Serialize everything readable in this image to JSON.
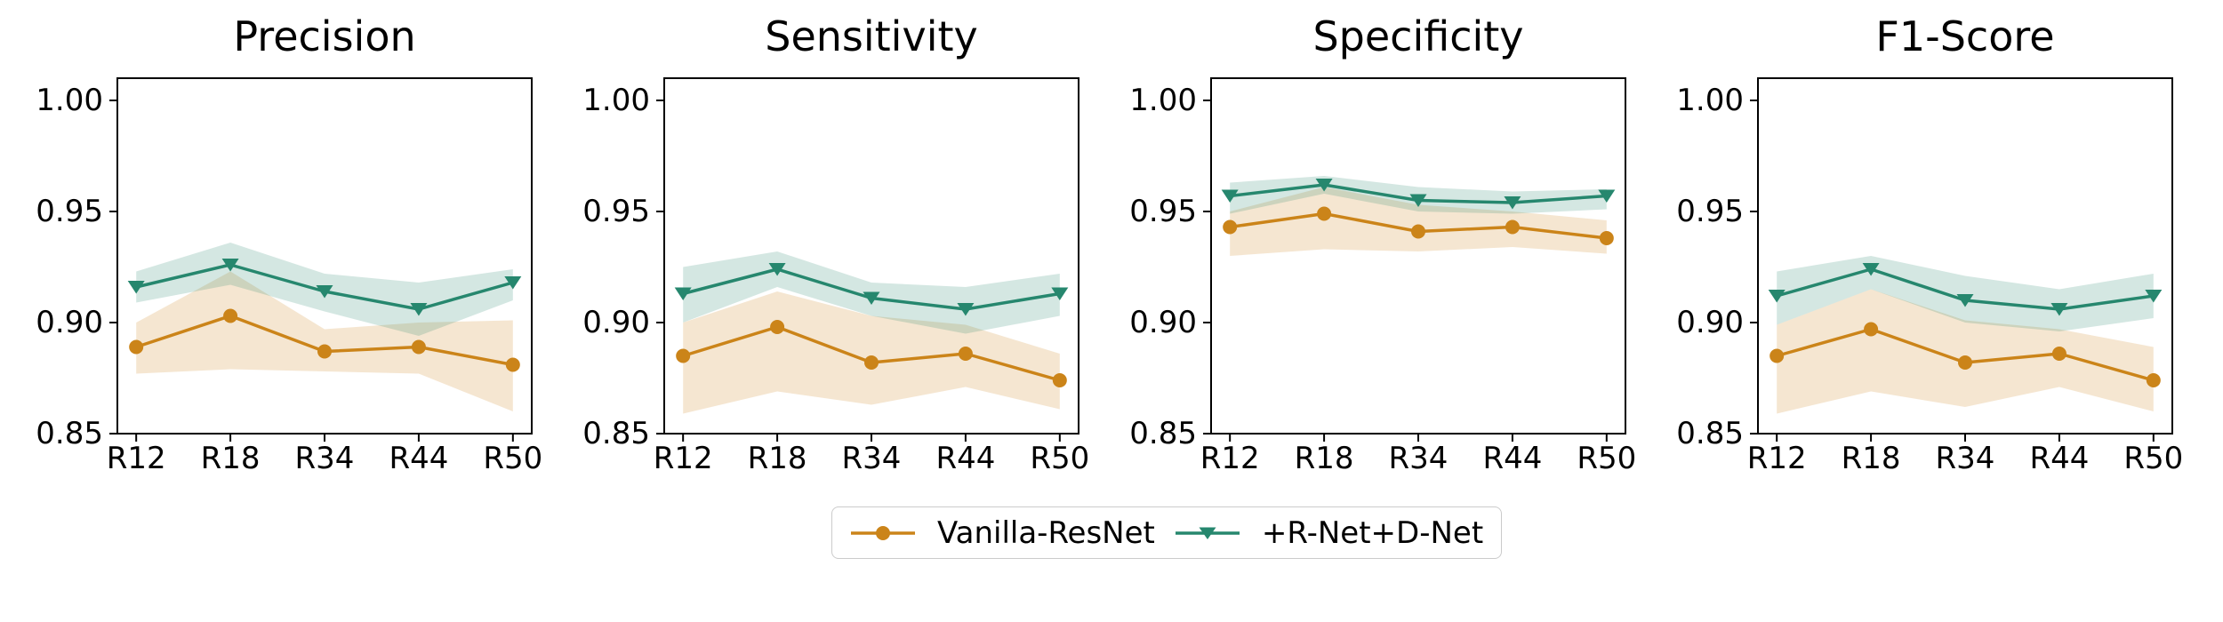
{
  "figure": {
    "background": "#ffffff",
    "text_color": "#000000",
    "spine_color": "#000000"
  },
  "legend": {
    "items": [
      {
        "label": "Vanilla-ResNet",
        "marker": "circle-marker",
        "color": "#CB8419"
      },
      {
        "label": "+R-Net+D-Net",
        "marker": "triangle-down-marker",
        "color": "#26876E"
      }
    ]
  },
  "chart_data": [
    {
      "type": "line",
      "title": "Precision",
      "categories": [
        "R12",
        "R18",
        "R34",
        "R44",
        "R50"
      ],
      "ylim": [
        0.85,
        1.01
      ],
      "ytick_values": [
        1.0,
        0.95,
        0.9,
        0.85
      ],
      "ytick_labels": [
        "1.00",
        "0.95",
        "0.90",
        "0.85"
      ],
      "grid": false,
      "band_opacity": 0.2,
      "series": [
        {
          "name": "Vanilla-ResNet",
          "color": "#CB8419",
          "marker": "circle",
          "values": [
            0.889,
            0.903,
            0.887,
            0.889,
            0.881
          ],
          "band_upper": [
            0.9,
            0.923,
            0.897,
            0.9,
            0.901
          ],
          "band_lower": [
            0.877,
            0.879,
            0.878,
            0.877,
            0.86
          ]
        },
        {
          "name": "+R-Net+D-Net",
          "color": "#26876E",
          "marker": "triangle-down",
          "values": [
            0.916,
            0.926,
            0.914,
            0.906,
            0.918
          ],
          "band_upper": [
            0.923,
            0.936,
            0.922,
            0.918,
            0.924
          ],
          "band_lower": [
            0.909,
            0.917,
            0.905,
            0.894,
            0.91
          ]
        }
      ]
    },
    {
      "type": "line",
      "title": "Sensitivity",
      "categories": [
        "R12",
        "R18",
        "R34",
        "R44",
        "R50"
      ],
      "ylim": [
        0.85,
        1.01
      ],
      "ytick_values": [
        1.0,
        0.95,
        0.9,
        0.85
      ],
      "ytick_labels": [
        "1.00",
        "0.95",
        "0.90",
        "0.85"
      ],
      "grid": false,
      "band_opacity": 0.2,
      "series": [
        {
          "name": "Vanilla-ResNet",
          "color": "#CB8419",
          "marker": "circle",
          "values": [
            0.885,
            0.898,
            0.882,
            0.886,
            0.874
          ],
          "band_upper": [
            0.9,
            0.914,
            0.903,
            0.899,
            0.886
          ],
          "band_lower": [
            0.859,
            0.869,
            0.863,
            0.871,
            0.861
          ]
        },
        {
          "name": "+R-Net+D-Net",
          "color": "#26876E",
          "marker": "triangle-down",
          "values": [
            0.913,
            0.924,
            0.911,
            0.906,
            0.913
          ],
          "band_upper": [
            0.925,
            0.932,
            0.918,
            0.916,
            0.922
          ],
          "band_lower": [
            0.9,
            0.916,
            0.903,
            0.895,
            0.903
          ]
        }
      ]
    },
    {
      "type": "line",
      "title": "Specificity",
      "categories": [
        "R12",
        "R18",
        "R34",
        "R44",
        "R50"
      ],
      "ylim": [
        0.85,
        1.01
      ],
      "ytick_values": [
        1.0,
        0.95,
        0.9,
        0.85
      ],
      "ytick_labels": [
        "1.00",
        "0.95",
        "0.90",
        "0.85"
      ],
      "grid": false,
      "band_opacity": 0.2,
      "series": [
        {
          "name": "Vanilla-ResNet",
          "color": "#CB8419",
          "marker": "circle",
          "values": [
            0.943,
            0.949,
            0.941,
            0.943,
            0.938
          ],
          "band_upper": [
            0.95,
            0.961,
            0.953,
            0.95,
            0.946
          ],
          "band_lower": [
            0.93,
            0.933,
            0.932,
            0.934,
            0.931
          ]
        },
        {
          "name": "+R-Net+D-Net",
          "color": "#26876E",
          "marker": "triangle-down",
          "values": [
            0.957,
            0.962,
            0.955,
            0.954,
            0.957
          ],
          "band_upper": [
            0.963,
            0.966,
            0.961,
            0.959,
            0.96
          ],
          "band_lower": [
            0.949,
            0.958,
            0.95,
            0.949,
            0.951
          ]
        }
      ]
    },
    {
      "type": "line",
      "title": "F1-Score",
      "categories": [
        "R12",
        "R18",
        "R34",
        "R44",
        "R50"
      ],
      "ylim": [
        0.85,
        1.01
      ],
      "ytick_values": [
        1.0,
        0.95,
        0.9,
        0.85
      ],
      "ytick_labels": [
        "1.00",
        "0.95",
        "0.90",
        "0.85"
      ],
      "grid": false,
      "band_opacity": 0.2,
      "series": [
        {
          "name": "Vanilla-ResNet",
          "color": "#CB8419",
          "marker": "circle",
          "values": [
            0.885,
            0.897,
            0.882,
            0.886,
            0.874
          ],
          "band_upper": [
            0.899,
            0.915,
            0.901,
            0.897,
            0.889
          ],
          "band_lower": [
            0.859,
            0.869,
            0.862,
            0.871,
            0.86
          ]
        },
        {
          "name": "+R-Net+D-Net",
          "color": "#26876E",
          "marker": "triangle-down",
          "values": [
            0.912,
            0.924,
            0.91,
            0.906,
            0.912
          ],
          "band_upper": [
            0.923,
            0.93,
            0.921,
            0.915,
            0.922
          ],
          "band_lower": [
            0.899,
            0.915,
            0.9,
            0.896,
            0.902
          ]
        }
      ]
    }
  ]
}
